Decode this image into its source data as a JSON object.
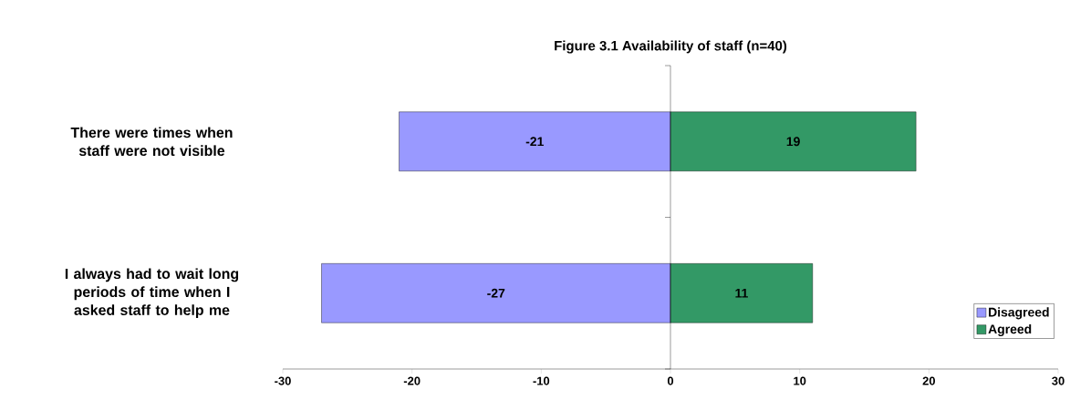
{
  "chart_data": {
    "type": "bar",
    "orientation": "horizontal",
    "stacked": true,
    "title": "Figure 3.1  Availability of staff (n=40)",
    "categories": [
      "There were times when staff were not visible",
      "I always had to wait long periods of time when I asked staff to help me"
    ],
    "series": [
      {
        "name": "Disagreed",
        "color": "#9999ff",
        "values": [
          -21,
          -27
        ]
      },
      {
        "name": "Agreed",
        "color": "#339966",
        "values": [
          19,
          11
        ]
      }
    ],
    "xlim": [
      -30,
      30
    ],
    "xticks": [
      -30,
      -20,
      -10,
      0,
      10,
      20,
      30
    ],
    "data_labels": true,
    "legend": "bottom right"
  }
}
